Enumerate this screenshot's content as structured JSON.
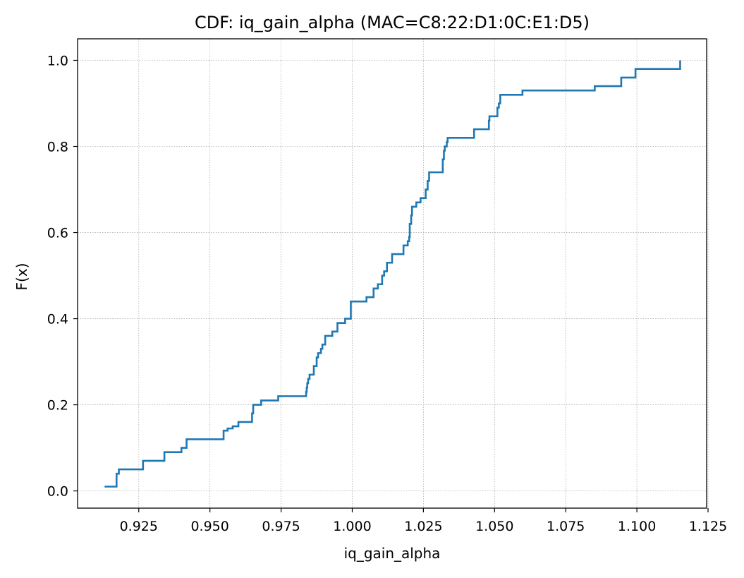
{
  "chart_data": {
    "type": "line",
    "drawstyle": "steps-post",
    "title": "CDF: iq_gain_alpha (MAC=C8:22:D1:0C:E1:D5)",
    "xlabel": "iq_gain_alpha",
    "ylabel": "F(x)",
    "xlim": [
      0.9035,
      1.1245
    ],
    "ylim": [
      -0.04,
      1.05
    ],
    "grid": true,
    "grid_style": "dotted",
    "x_ticks": [
      0.925,
      0.95,
      0.975,
      1.0,
      1.025,
      1.05,
      1.075,
      1.1,
      1.125
    ],
    "x_tick_labels": [
      "0.925",
      "0.950",
      "0.975",
      "1.000",
      "1.025",
      "1.050",
      "1.075",
      "1.100",
      "1.125"
    ],
    "y_ticks": [
      0.0,
      0.2,
      0.4,
      0.6,
      0.8,
      1.0
    ],
    "y_tick_labels": [
      "0.0",
      "0.2",
      "0.4",
      "0.6",
      "0.8",
      "1.0"
    ],
    "series": [
      {
        "color": "#1f77b4",
        "x": [
          0.913,
          0.9172,
          0.918,
          0.9265,
          0.934,
          0.94,
          0.9418,
          0.9548,
          0.9562,
          0.958,
          0.96,
          0.9648,
          0.9652,
          0.968,
          0.974,
          0.9838,
          0.984,
          0.9842,
          0.9845,
          0.985,
          0.9865,
          0.9875,
          0.988,
          0.989,
          0.9895,
          0.9905,
          0.993,
          0.9948,
          0.9975,
          0.9995,
          1.005,
          1.0075,
          1.009,
          1.0105,
          1.0112,
          1.0122,
          1.014,
          1.018,
          1.0195,
          1.02,
          1.0202,
          1.0207,
          1.021,
          1.0225,
          1.024,
          1.0258,
          1.0265,
          1.027,
          1.0318,
          1.0322,
          1.0325,
          1.0332,
          1.0335,
          1.0428,
          1.048,
          1.0482,
          1.051,
          1.0515,
          1.052,
          1.0598,
          1.0852,
          1.0945,
          1.0995,
          1.1152
        ],
        "y": [
          0.01,
          0.04,
          0.05,
          0.07,
          0.09,
          0.1,
          0.12,
          0.14,
          0.145,
          0.15,
          0.16,
          0.18,
          0.2,
          0.21,
          0.22,
          0.23,
          0.24,
          0.25,
          0.26,
          0.27,
          0.29,
          0.31,
          0.32,
          0.33,
          0.34,
          0.36,
          0.37,
          0.39,
          0.4,
          0.44,
          0.45,
          0.47,
          0.48,
          0.5,
          0.51,
          0.53,
          0.55,
          0.57,
          0.58,
          0.59,
          0.62,
          0.64,
          0.66,
          0.67,
          0.68,
          0.7,
          0.72,
          0.74,
          0.77,
          0.79,
          0.8,
          0.81,
          0.82,
          0.84,
          0.86,
          0.87,
          0.89,
          0.9,
          0.92,
          0.93,
          0.94,
          0.96,
          0.98,
          1.0
        ]
      }
    ]
  }
}
